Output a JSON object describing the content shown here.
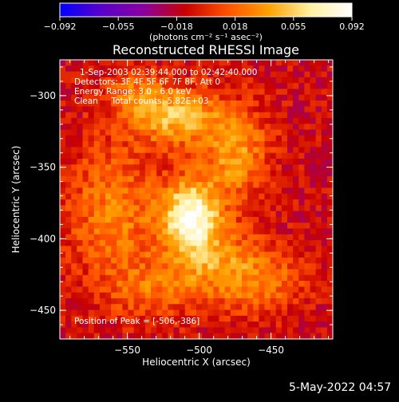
{
  "chart_data": {
    "type": "heatmap",
    "title": "Reconstructed RHESSI Image",
    "xlabel": "Heliocentric X (arcsec)",
    "ylabel": "Heliocentric Y (arcsec)",
    "xlim": [
      -597,
      -407
    ],
    "ylim": [
      -470,
      -275
    ],
    "x_ticks": [
      -550,
      -500,
      -450
    ],
    "y_ticks": [
      -300,
      -350,
      -400,
      -450
    ],
    "x_tick_labels": [
      "−550",
      "−500",
      "−450"
    ],
    "y_tick_labels": [
      "−300",
      "−350",
      "−400",
      "−450"
    ],
    "colorbar": {
      "range": [
        -0.092,
        0.092
      ],
      "tick_labels": [
        "−0.092",
        "−0.055",
        "−0.018",
        "0.018",
        "0.055",
        "0.092"
      ],
      "unit_label": "(photons cm⁻² s⁻¹ asec⁻²)",
      "colors": [
        "#0000ff",
        "#5a00c8",
        "#8a00a0",
        "#c80000",
        "#ff5000",
        "#ffa000",
        "#fff0a0",
        "#ffffff"
      ]
    },
    "annotations": [
      "1-Sep-2003 02:39:44.000 to 02:42:40.000",
      "Detectors: 3F 4F 5F 6F 7F 8F, Att 0",
      "Energy Range: 3.0 - 6.0 keV",
      "Clean     Total counts: 5.82E+03"
    ],
    "peak_label": "Position of Peak = [-506,-386]",
    "peak": [
      -506,
      -386
    ],
    "emission_blobs": [
      {
        "x": -506,
        "y": -385,
        "sx": 14,
        "sy": 18,
        "amp": 0.096
      },
      {
        "x": -515,
        "y": -315,
        "sx": 20,
        "sy": 14,
        "amp": 0.06
      },
      {
        "x": -475,
        "y": -340,
        "sx": 16,
        "sy": 22,
        "amp": 0.05
      },
      {
        "x": -560,
        "y": -380,
        "sx": 22,
        "sy": 34,
        "amp": 0.04
      },
      {
        "x": -485,
        "y": -420,
        "sx": 22,
        "sy": 20,
        "amp": 0.045
      },
      {
        "x": -545,
        "y": -300,
        "sx": 14,
        "sy": 12,
        "amp": 0.035
      },
      {
        "x": -450,
        "y": -430,
        "sx": 16,
        "sy": 14,
        "amp": 0.03
      },
      {
        "x": -535,
        "y": -435,
        "sx": 20,
        "sy": 14,
        "amp": 0.03
      }
    ]
  },
  "timestamp": "5-May-2022 04:57"
}
